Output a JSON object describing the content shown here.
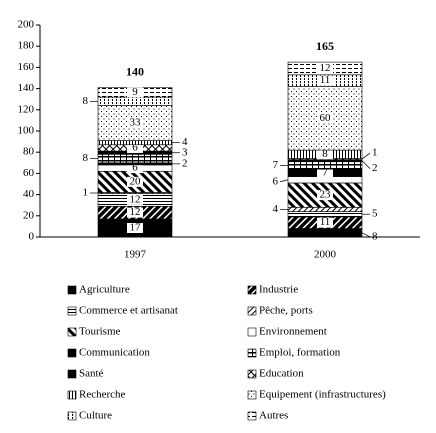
{
  "chart_data": {
    "type": "stacked-bar",
    "categories": [
      "1997",
      "2000"
    ],
    "totals": [
      140,
      165
    ],
    "ylim": [
      0,
      200
    ],
    "yticks": [
      0,
      20,
      40,
      60,
      80,
      100,
      120,
      140,
      160,
      180,
      200
    ],
    "grid": false,
    "legend": "bottom",
    "series": [
      {
        "name": "Agriculture",
        "color": "#000000",
        "pattern": "solid",
        "values": [
          17,
          8
        ]
      },
      {
        "name": "Industrie",
        "color": "#000000",
        "pattern": "diag-thick",
        "values": [
          12,
          11
        ]
      },
      {
        "name": "Commerce et artisanat",
        "color": "#000000",
        "pattern": "hlines",
        "values": [
          12,
          5
        ]
      },
      {
        "name": "Pêche, ports",
        "color": "#000000",
        "pattern": "diag-thin",
        "values": [
          1,
          4
        ]
      },
      {
        "name": "Tourisme",
        "color": "#000000",
        "pattern": "bdiag-thick",
        "values": [
          20,
          23
        ]
      },
      {
        "name": "Environnement",
        "color": "#000000",
        "pattern": "none",
        "values": [
          6,
          6
        ]
      },
      {
        "name": "Communication",
        "color": "#000000",
        "pattern": "solid",
        "values": [
          2,
          7
        ]
      },
      {
        "name": "Emploi, formation",
        "color": "#000000",
        "pattern": "hbox",
        "values": [
          8,
          7
        ]
      },
      {
        "name": "Santé",
        "color": "#000000",
        "pattern": "solid",
        "values": [
          3,
          2
        ]
      },
      {
        "name": "Education",
        "color": "#000000",
        "pattern": "cross",
        "values": [
          6,
          1
        ]
      },
      {
        "name": "Recherche",
        "color": "#000000",
        "pattern": "vlines",
        "values": [
          4,
          8
        ]
      },
      {
        "name": "Equipement (infrastructures)",
        "color": "#000000",
        "pattern": "dots",
        "values": [
          33,
          60
        ]
      },
      {
        "name": "Culture",
        "color": "#000000",
        "pattern": "vdots",
        "values": [
          8,
          11
        ]
      },
      {
        "name": "Autres",
        "color": "#000000",
        "pattern": "hdash",
        "values": [
          9,
          12
        ]
      }
    ]
  }
}
